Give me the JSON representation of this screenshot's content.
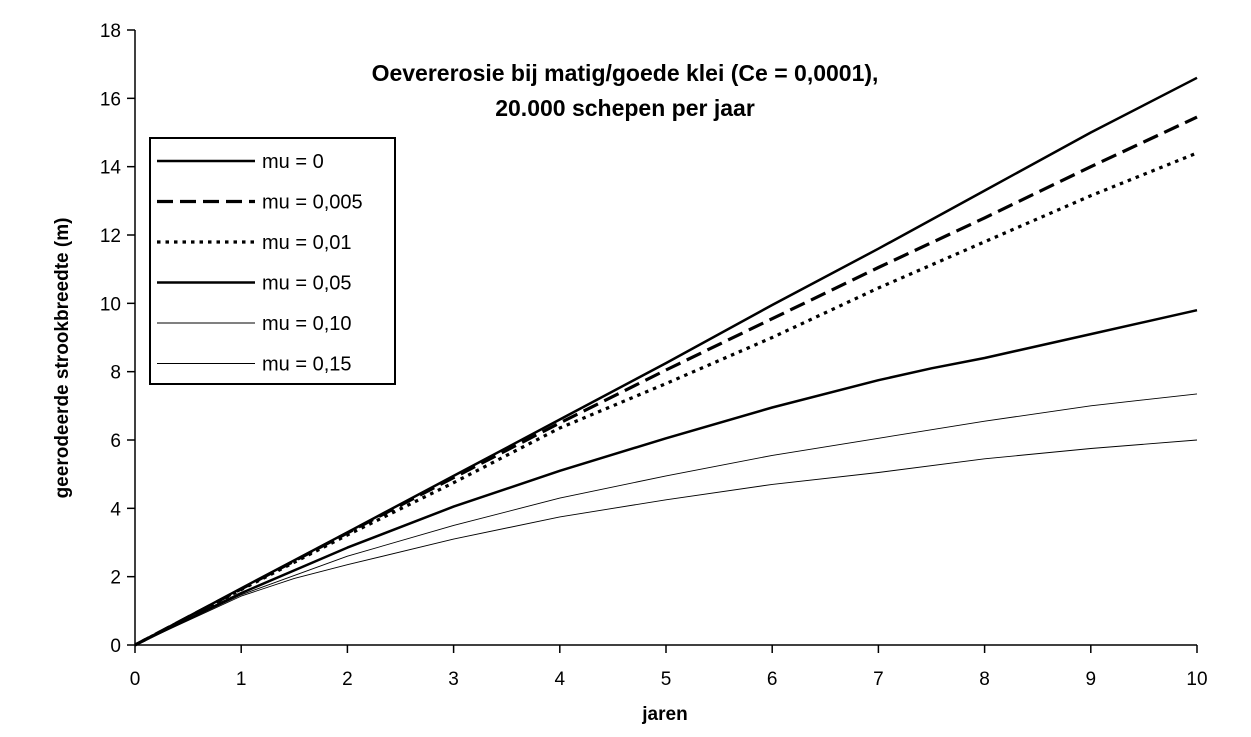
{
  "chart_data": {
    "type": "line",
    "title_lines": [
      "Oevererosie bij matig/goede klei (Ce = 0,0001),",
      "20.000 schepen per jaar"
    ],
    "xlabel": "jaren",
    "ylabel": "geerodeerde strookbreedte (m)",
    "xlim": [
      0,
      10
    ],
    "ylim": [
      0,
      18
    ],
    "xticks": [
      0,
      1,
      2,
      3,
      4,
      5,
      6,
      7,
      8,
      9,
      10
    ],
    "yticks": [
      0,
      2,
      4,
      6,
      8,
      10,
      12,
      14,
      16,
      18
    ],
    "grid": false,
    "legend_position": "upper-left",
    "series": [
      {
        "name": "mu = 0",
        "style": "solid-thick",
        "x": [
          0,
          1,
          2,
          3,
          4,
          5,
          6,
          7,
          8,
          9,
          10
        ],
        "y": [
          0,
          1.66,
          3.3,
          4.95,
          6.6,
          8.25,
          9.95,
          11.6,
          13.3,
          15.0,
          16.6
        ]
      },
      {
        "name": "mu = 0,005",
        "style": "dashed",
        "x": [
          0,
          1,
          2,
          3,
          4,
          5,
          6,
          7,
          8,
          9,
          10
        ],
        "y": [
          0,
          1.64,
          3.28,
          4.9,
          6.5,
          8.05,
          9.55,
          11.05,
          12.5,
          14.0,
          15.45
        ]
      },
      {
        "name": "mu = 0,01",
        "style": "dotted",
        "x": [
          0,
          1,
          2,
          3,
          4,
          5,
          6,
          7,
          8,
          9,
          10
        ],
        "y": [
          0,
          1.62,
          3.22,
          4.75,
          6.35,
          7.65,
          9.0,
          10.45,
          11.8,
          13.15,
          14.4
        ]
      },
      {
        "name": "mu = 0,05",
        "style": "solid-thick",
        "x": [
          0,
          1,
          2,
          3,
          4,
          5,
          6,
          7,
          7.5,
          8,
          9,
          10
        ],
        "y": [
          0,
          1.52,
          2.85,
          4.05,
          5.1,
          6.05,
          6.95,
          7.75,
          8.1,
          8.4,
          9.1,
          9.8
        ]
      },
      {
        "name": "mu = 0,10",
        "style": "solid-thin",
        "x": [
          0,
          1,
          2,
          3,
          4,
          5,
          6,
          7,
          8,
          9,
          10
        ],
        "y": [
          0,
          1.47,
          2.6,
          3.5,
          4.3,
          4.95,
          5.55,
          6.05,
          6.55,
          7.0,
          7.35
        ]
      },
      {
        "name": "mu = 0,15",
        "style": "solid-thin",
        "x": [
          0,
          1,
          1.5,
          2,
          3,
          4,
          5,
          6,
          7,
          8,
          9,
          10
        ],
        "y": [
          0,
          1.43,
          1.95,
          2.35,
          3.1,
          3.75,
          4.25,
          4.7,
          5.05,
          5.45,
          5.75,
          6.0
        ]
      }
    ]
  }
}
